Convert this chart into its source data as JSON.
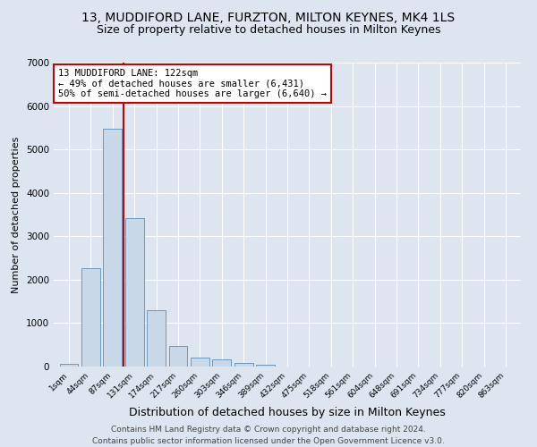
{
  "title": "13, MUDDIFORD LANE, FURZTON, MILTON KEYNES, MK4 1LS",
  "subtitle": "Size of property relative to detached houses in Milton Keynes",
  "xlabel": "Distribution of detached houses by size in Milton Keynes",
  "ylabel": "Number of detached properties",
  "footer_line1": "Contains HM Land Registry data © Crown copyright and database right 2024.",
  "footer_line2": "Contains public sector information licensed under the Open Government Licence v3.0.",
  "bar_labels": [
    "1sqm",
    "44sqm",
    "87sqm",
    "131sqm",
    "174sqm",
    "217sqm",
    "260sqm",
    "303sqm",
    "346sqm",
    "389sqm",
    "432sqm",
    "475sqm",
    "518sqm",
    "561sqm",
    "604sqm",
    "648sqm",
    "691sqm",
    "734sqm",
    "777sqm",
    "820sqm",
    "863sqm"
  ],
  "bar_values": [
    70,
    2270,
    5480,
    3420,
    1300,
    480,
    200,
    160,
    90,
    50,
    0,
    0,
    0,
    0,
    0,
    0,
    0,
    0,
    0,
    0,
    0
  ],
  "bar_color": "#c8d8e8",
  "bar_edge_color": "#5b8db8",
  "ylim": [
    0,
    7000
  ],
  "yticks": [
    0,
    1000,
    2000,
    3000,
    4000,
    5000,
    6000,
    7000
  ],
  "vline_x": 2.48,
  "vline_color": "#cc0000",
  "annotation_text": "13 MUDDIFORD LANE: 122sqm\n← 49% of detached houses are smaller (6,431)\n50% of semi-detached houses are larger (6,640) →",
  "annotation_box_color": "#ffffff",
  "annotation_box_edge": "#cc0000",
  "bg_color": "#dde6f0",
  "plot_bg_color": "#dde6f0",
  "grid_color": "#ffffff",
  "title_fontsize": 10,
  "subtitle_fontsize": 9,
  "xlabel_fontsize": 9,
  "ylabel_fontsize": 8,
  "annotation_fontsize": 7.5,
  "footer_fontsize": 6.5
}
